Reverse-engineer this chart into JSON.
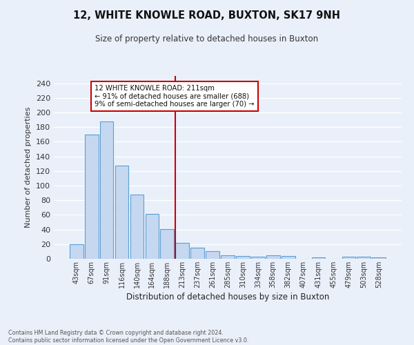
{
  "title1": "12, WHITE KNOWLE ROAD, BUXTON, SK17 9NH",
  "title2": "Size of property relative to detached houses in Buxton",
  "xlabel": "Distribution of detached houses by size in Buxton",
  "ylabel": "Number of detached properties",
  "footnote": "Contains HM Land Registry data © Crown copyright and database right 2024.\nContains public sector information licensed under the Open Government Licence v3.0.",
  "annotation_title": "12 WHITE KNOWLE ROAD: 211sqm",
  "annotation_line1": "← 91% of detached houses are smaller (688)",
  "annotation_line2": "9% of semi-detached houses are larger (70) →",
  "bar_labels": [
    "43sqm",
    "67sqm",
    "91sqm",
    "116sqm",
    "140sqm",
    "164sqm",
    "188sqm",
    "213sqm",
    "237sqm",
    "261sqm",
    "285sqm",
    "310sqm",
    "334sqm",
    "358sqm",
    "382sqm",
    "407sqm",
    "431sqm",
    "455sqm",
    "479sqm",
    "503sqm",
    "528sqm"
  ],
  "bar_values": [
    20,
    170,
    188,
    127,
    88,
    61,
    41,
    22,
    15,
    10,
    5,
    4,
    3,
    5,
    4,
    0,
    2,
    0,
    3,
    3,
    2
  ],
  "bar_color": "#c5d8f0",
  "bar_edge_color": "#5a9fd4",
  "vline_color": "#cc0000",
  "annotation_box_edge": "#cc0000",
  "ylim": [
    0,
    250
  ],
  "yticks": [
    0,
    20,
    40,
    60,
    80,
    100,
    120,
    140,
    160,
    180,
    200,
    220,
    240
  ],
  "background_color": "#eaf0fa",
  "grid_color": "white"
}
